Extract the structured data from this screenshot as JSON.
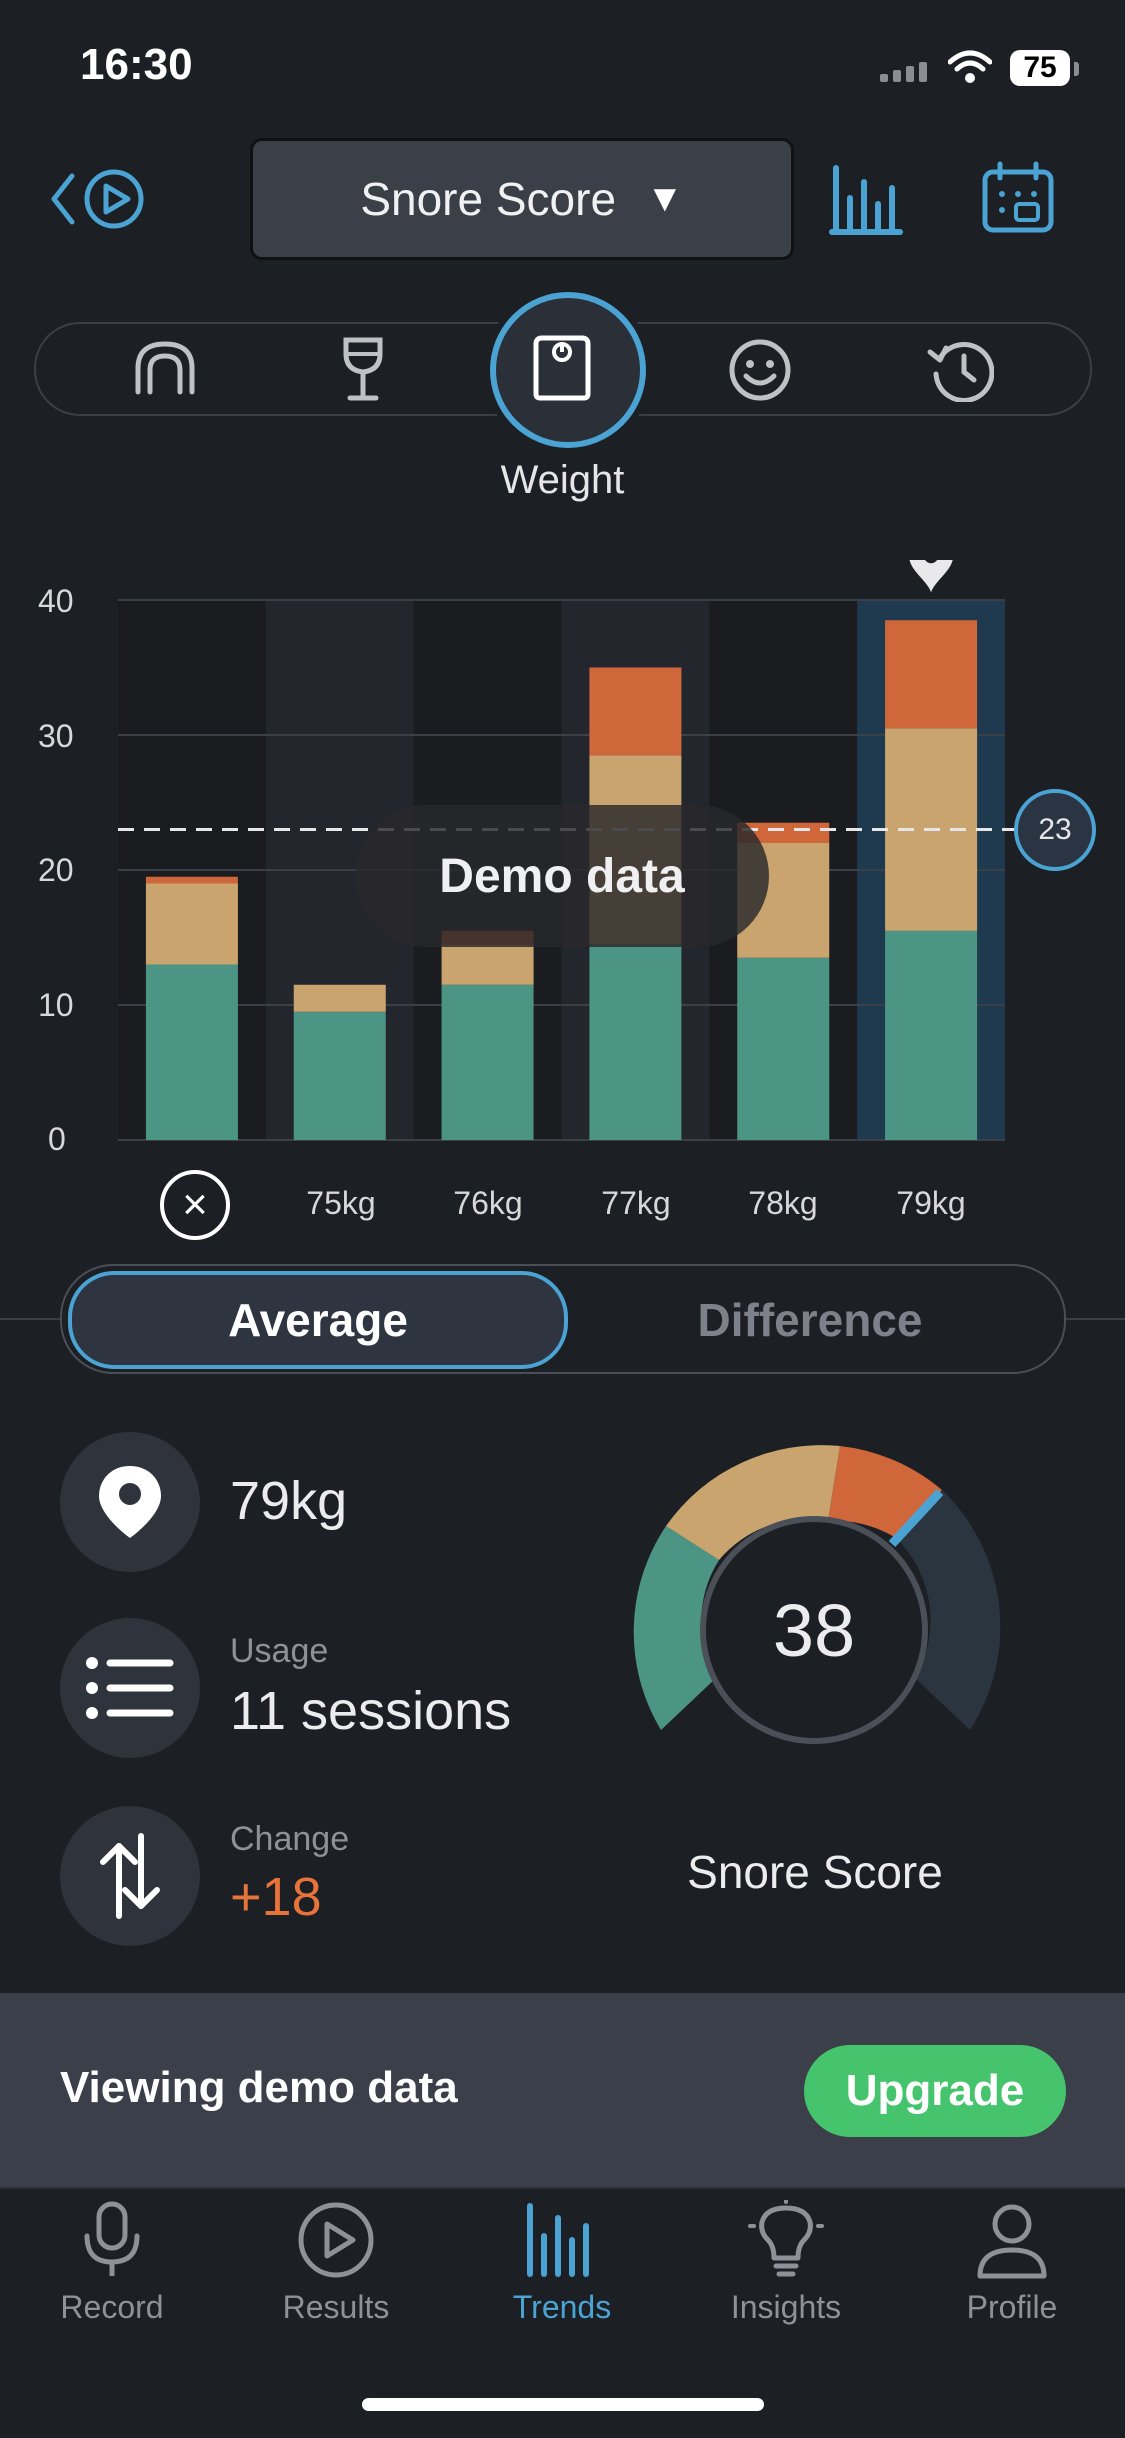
{
  "status": {
    "time": "16:30",
    "battery": "75"
  },
  "header": {
    "metric_label": "Snore Score",
    "dropdown_arrow": "▼"
  },
  "factors": {
    "items": [
      {
        "icon": "mouthguard-icon"
      },
      {
        "icon": "wine-glass-icon"
      },
      {
        "icon": "scale-icon",
        "selected": true
      },
      {
        "icon": "smiley-icon"
      },
      {
        "icon": "history-icon"
      }
    ],
    "selected_label": "Weight"
  },
  "chart_data": {
    "type": "bar",
    "stacked": true,
    "categories": [
      "",
      "75kg",
      "76kg",
      "77kg",
      "78kg",
      "79kg"
    ],
    "series": [
      {
        "values": [
          13,
          9.5,
          11.5,
          14.5,
          13.5,
          15.5
        ],
        "color": "#4c9584"
      },
      {
        "values": [
          6,
          2,
          3,
          14,
          8.5,
          15
        ],
        "color": "#c9a46e"
      },
      {
        "values": [
          0.5,
          0,
          1,
          6.5,
          1.5,
          8
        ],
        "color": "#d0673b"
      }
    ],
    "ylim": [
      0,
      40
    ],
    "yticks": [
      "0",
      "10",
      "20",
      "30",
      "40"
    ],
    "average_value": 23,
    "average_label": "23",
    "highlighted_category": "79kg",
    "overlay_label": "Demo data",
    "grid": true
  },
  "segment": {
    "active": "Average",
    "inactive": "Difference"
  },
  "stats": {
    "weight_value": "79kg",
    "usage_label": "Usage",
    "usage_value": "11 sessions",
    "change_label": "Change",
    "change_value": "+18",
    "change_color": "#e8733a"
  },
  "score": {
    "value": "38",
    "label": "Snore Score"
  },
  "banner": {
    "text": "Viewing demo data",
    "button": "Upgrade"
  },
  "tabs": [
    {
      "label": "Record",
      "icon": "microphone-icon"
    },
    {
      "label": "Results",
      "icon": "play-circle-icon"
    },
    {
      "label": "Trends",
      "icon": "bar-chart-icon",
      "active": true
    },
    {
      "label": "Insights",
      "icon": "lightbulb-icon"
    },
    {
      "label": "Profile",
      "icon": "person-icon"
    }
  ],
  "colors": {
    "accent": "#4aa3d3",
    "upgrade": "#46c46d",
    "teal": "#4c9584",
    "tan": "#c9a46e",
    "orange": "#d0673b"
  }
}
